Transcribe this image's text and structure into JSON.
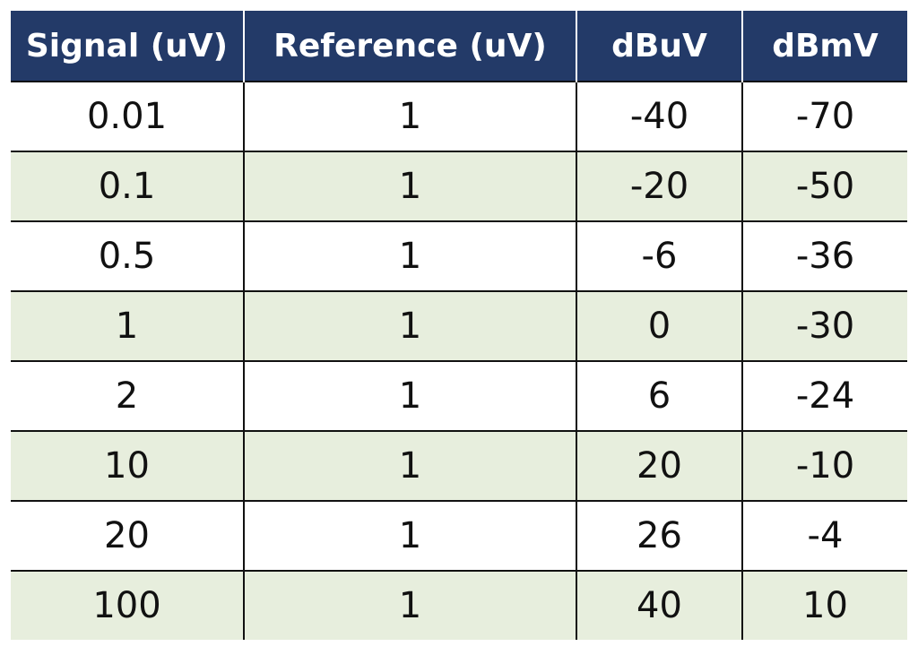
{
  "table": {
    "header": [
      "Signal (uV)",
      "Reference (uV)",
      "dBuV",
      "dBmV"
    ],
    "rows": [
      [
        "0.01",
        "1",
        "-40",
        "-70"
      ],
      [
        "0.1",
        "1",
        "-20",
        "-50"
      ],
      [
        "0.5",
        "1",
        "-6",
        "-36"
      ],
      [
        "1",
        "1",
        "0",
        "-30"
      ],
      [
        "2",
        "1",
        "6",
        "-24"
      ],
      [
        "10",
        "1",
        "20",
        "-10"
      ],
      [
        "20",
        "1",
        "26",
        "-4"
      ],
      [
        "100",
        "1",
        "40",
        "10"
      ]
    ]
  }
}
